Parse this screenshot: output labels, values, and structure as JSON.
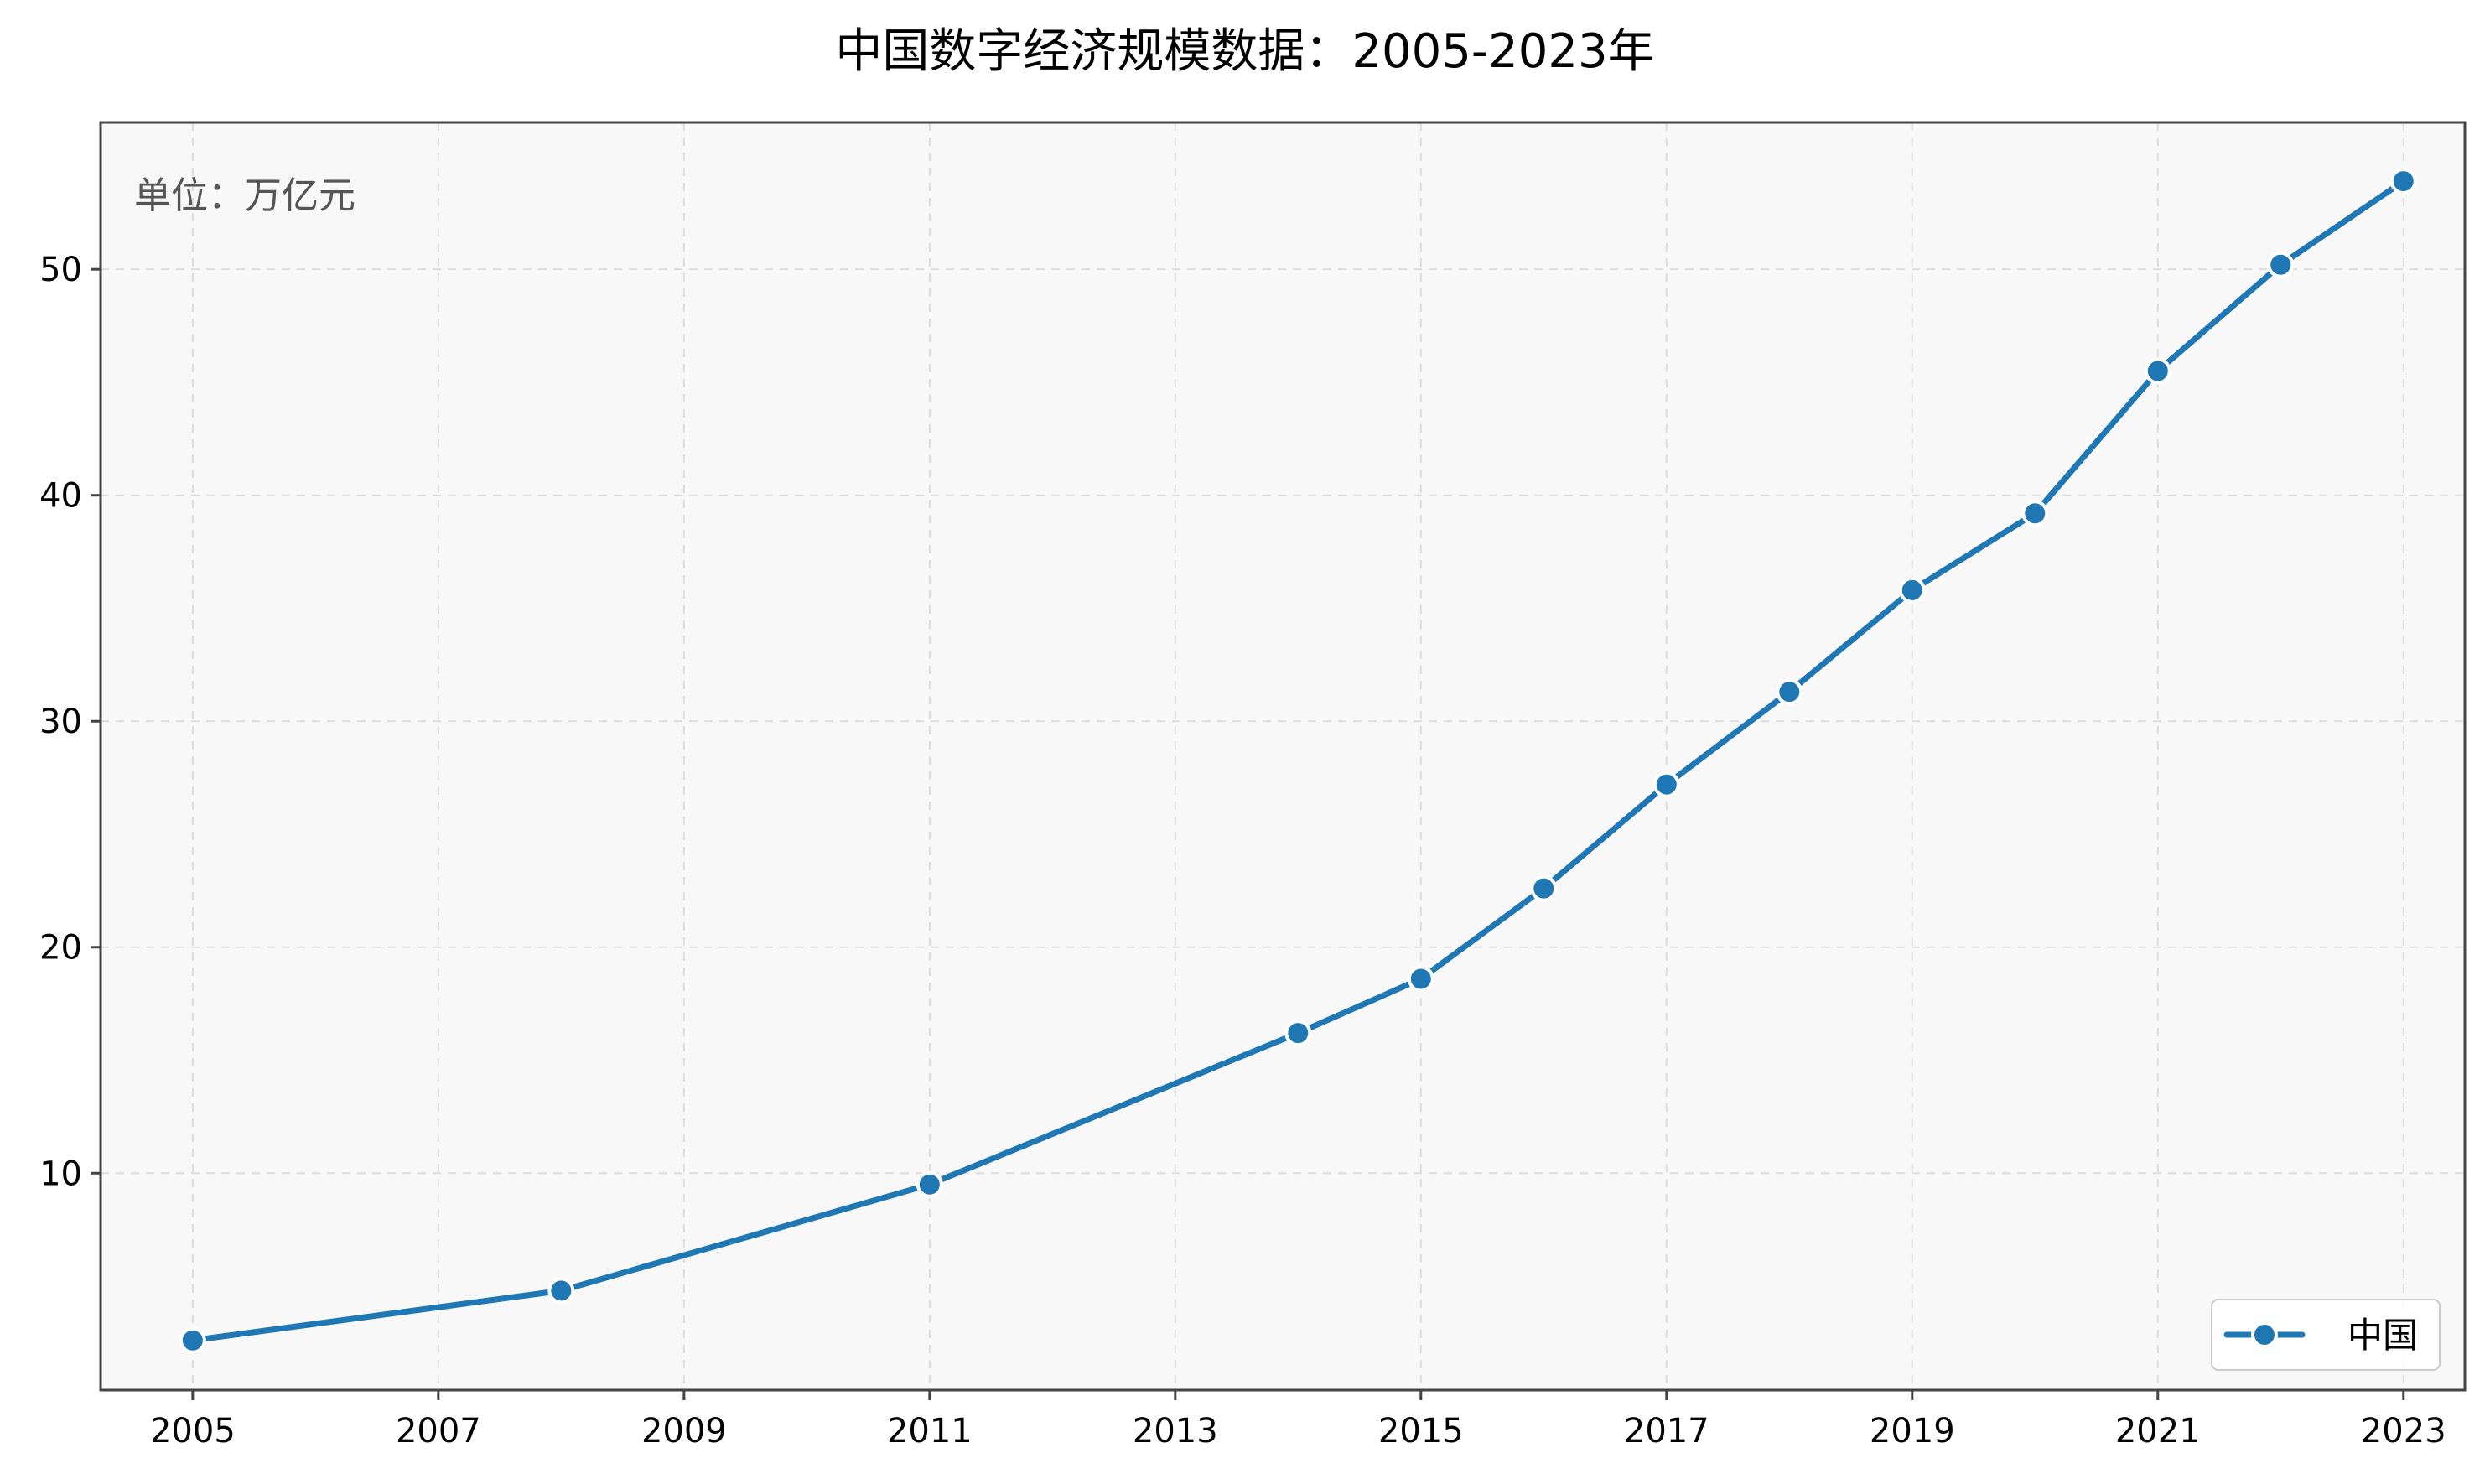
{
  "colors": {
    "series": "#1f77b4",
    "plot_background": "#f8f8f8",
    "grid": "#dddddd",
    "frame": "#444444",
    "unit_text": "#555555"
  },
  "chart_data": {
    "type": "line",
    "title": "中国数字经济规模数据：2005-2023年",
    "unit_label": "单位：万亿元",
    "xlabel": "",
    "ylabel": "",
    "grid": true,
    "legend_position": "bottom-right",
    "xlim": [
      2004.25,
      2023.5
    ],
    "ylim": [
      0.4,
      56.5
    ],
    "x_ticks": [
      2005,
      2007,
      2009,
      2011,
      2013,
      2015,
      2017,
      2019,
      2021,
      2023
    ],
    "x_tick_labels": [
      "2005",
      "2007",
      "2009",
      "2011",
      "2013",
      "2015",
      "2017",
      "2019",
      "2021",
      "2023"
    ],
    "y_ticks": [
      10,
      20,
      30,
      40,
      50
    ],
    "y_tick_labels": [
      "10",
      "20",
      "30",
      "40",
      "50"
    ],
    "series": [
      {
        "name": "中国",
        "color": "#1f77b4",
        "x": [
          2005,
          2008,
          2011,
          2014,
          2015,
          2016,
          2017,
          2018,
          2019,
          2020,
          2021,
          2022,
          2023
        ],
        "values": [
          2.6,
          4.8,
          9.5,
          16.2,
          18.6,
          22.6,
          27.2,
          31.3,
          35.8,
          39.2,
          45.5,
          50.2,
          53.9
        ]
      }
    ]
  }
}
